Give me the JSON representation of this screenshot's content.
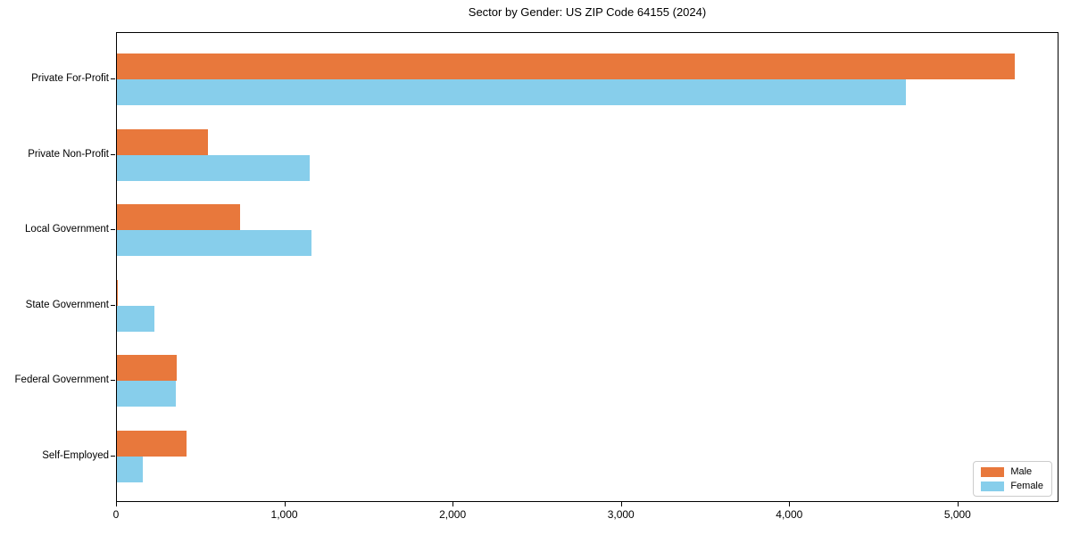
{
  "chart_data": {
    "type": "bar",
    "orientation": "horizontal",
    "title": "Sector by Gender: US ZIP Code 64155 (2024)",
    "xlabel": "",
    "ylabel": "",
    "categories": [
      "Private For-Profit",
      "Private Non-Profit",
      "Local Government",
      "State Government",
      "Federal Government",
      "Self-Employed"
    ],
    "series": [
      {
        "name": "Male",
        "color": "#E8783C",
        "values": [
          5335,
          540,
          730,
          5,
          355,
          415
        ]
      },
      {
        "name": "Female",
        "color": "#87CEEB",
        "values": [
          4690,
          1145,
          1155,
          225,
          350,
          155
        ]
      }
    ],
    "xlim": [
      0,
      5600
    ],
    "x_ticks": [
      0,
      1000,
      2000,
      3000,
      4000,
      5000
    ],
    "x_tick_labels": [
      "0",
      "1,000",
      "2,000",
      "3,000",
      "4,000",
      "5,000"
    ],
    "grid": false,
    "legend_position": "lower right",
    "colors": {
      "axis": "#000000",
      "legend_border": "#CCCCCC",
      "background": "#FFFFFF"
    }
  }
}
